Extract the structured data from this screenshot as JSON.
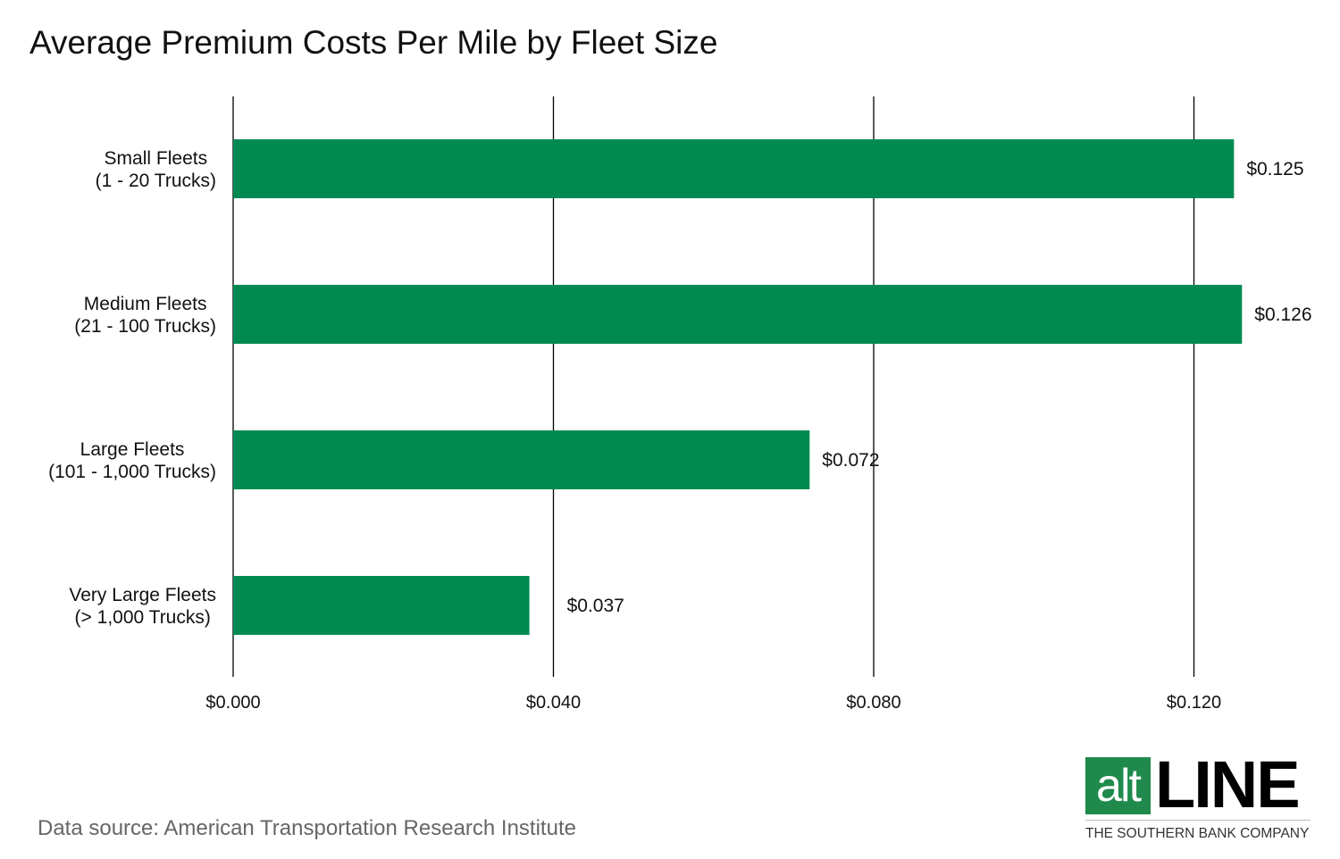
{
  "chart_data": {
    "type": "bar",
    "orientation": "horizontal",
    "title": "Average Premium Costs Per Mile by Fleet Size",
    "categories": [
      [
        "Small Fleets",
        "(1 - 20 Trucks)"
      ],
      [
        "Medium Fleets",
        "(21 - 100 Trucks)"
      ],
      [
        "Large Fleets",
        "(101 - 1,000 Trucks)"
      ],
      [
        "Very Large Fleets",
        "(> 1,000 Trucks)"
      ]
    ],
    "values": [
      0.125,
      0.126,
      0.072,
      0.037
    ],
    "data_labels": [
      "$0.125",
      "$0.126",
      "$0.072",
      "$0.037"
    ],
    "xlim": [
      0,
      0.13
    ],
    "xticks": [
      0,
      0.04,
      0.08,
      0.12
    ],
    "xtick_labels": [
      "$0.000",
      "$0.040",
      "$0.080",
      "$0.120"
    ],
    "xlabel": "",
    "ylabel": "",
    "grid": "vertical",
    "bar_color": "#008a52"
  },
  "source": "Data source: American Transportation Research Institute",
  "logo": {
    "alt": "alt",
    "line": "LINE",
    "tagline": "THE SOUTHERN BANK COMPANY",
    "color": "#1f8a4c"
  }
}
